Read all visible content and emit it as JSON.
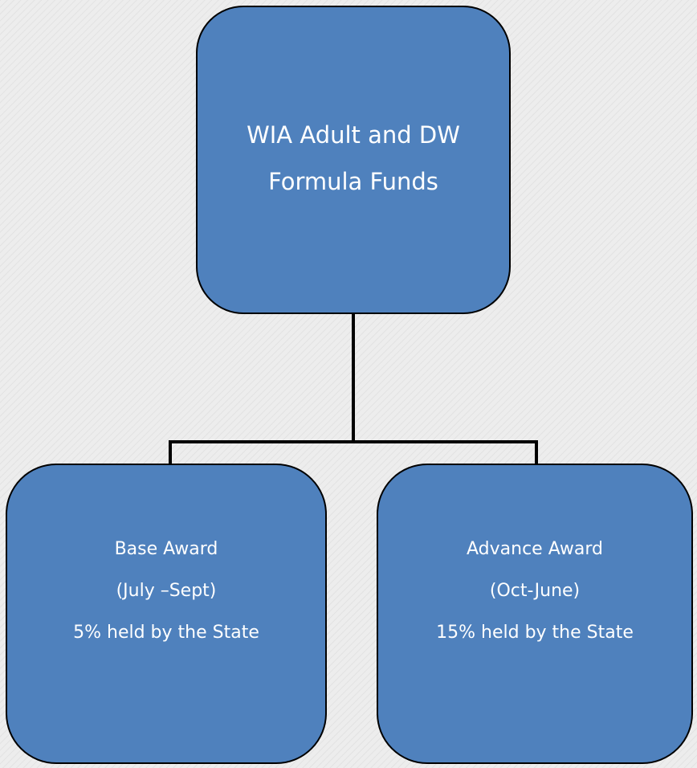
{
  "nodes": [
    {
      "lines": [
        "WIA Adult and DW",
        "Formula Funds"
      ]
    },
    {
      "lines": [
        "Base Award",
        "(July –Sept)",
        "5% held by the State"
      ]
    },
    {
      "lines": [
        "Advance Award",
        "(Oct-June)",
        "15% held by the State"
      ]
    }
  ]
}
